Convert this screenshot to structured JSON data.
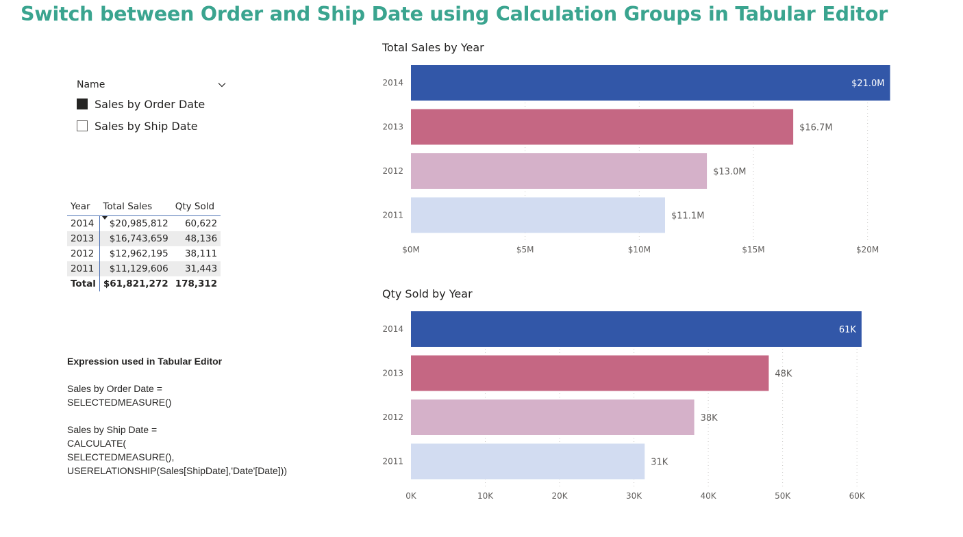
{
  "title": "Switch between Order and Ship Date using Calculation Groups in Tabular Editor",
  "slicer": {
    "header": "Name",
    "items": [
      {
        "label": "Sales by Order Date",
        "checked": true
      },
      {
        "label": "Sales by Ship Date",
        "checked": false
      }
    ]
  },
  "table": {
    "headers": [
      "Year",
      "Total Sales",
      "Qty Sold"
    ],
    "rows": [
      [
        "2014",
        "$20,985,812",
        "60,622"
      ],
      [
        "2013",
        "$16,743,659",
        "48,136"
      ],
      [
        "2012",
        "$12,962,195",
        "38,111"
      ],
      [
        "2011",
        "$11,129,606",
        "31,443"
      ]
    ],
    "total": [
      "Total",
      "$61,821,272",
      "178,312"
    ]
  },
  "expression": {
    "heading": "Expression used in Tabular Editor",
    "order_lines": [
      "Sales by Order Date =",
      "SELECTEDMEASURE()"
    ],
    "ship_lines": [
      "Sales by Ship Date =",
      "CALCULATE(",
      "SELECTEDMEASURE(),",
      "USERELATIONSHIP(Sales[ShipDate],'Date'[Date]))"
    ]
  },
  "chart_data": [
    {
      "type": "bar",
      "title": "Total Sales by Year",
      "categories": [
        "2014",
        "2013",
        "2012",
        "2011"
      ],
      "values": [
        20985812,
        16743659,
        12962195,
        11129606
      ],
      "data_labels": [
        "$21.0M",
        "$16.7M",
        "$13.0M",
        "$11.1M"
      ],
      "xticks": [
        0,
        5000000,
        10000000,
        15000000,
        20000000
      ],
      "xtick_labels": [
        "$0M",
        "$5M",
        "$10M",
        "$15M",
        "$20M"
      ],
      "xlim": [
        0,
        21000000
      ],
      "colors": [
        "#3257a8",
        "#c56783",
        "#d5b1c9",
        "#d2dcf1"
      ],
      "grid": true
    },
    {
      "type": "bar",
      "title": "Qty Sold by Year",
      "categories": [
        "2014",
        "2013",
        "2012",
        "2011"
      ],
      "values": [
        60622,
        48136,
        38111,
        31443
      ],
      "data_labels": [
        "61K",
        "48K",
        "38K",
        "31K"
      ],
      "xticks": [
        0,
        10000,
        20000,
        30000,
        40000,
        50000,
        60000
      ],
      "xtick_labels": [
        "0K",
        "10K",
        "20K",
        "30K",
        "40K",
        "50K",
        "60K"
      ],
      "xlim": [
        0,
        64500
      ],
      "colors": [
        "#3257a8",
        "#c56783",
        "#d5b1c9",
        "#d2dcf1"
      ],
      "grid": true
    }
  ]
}
